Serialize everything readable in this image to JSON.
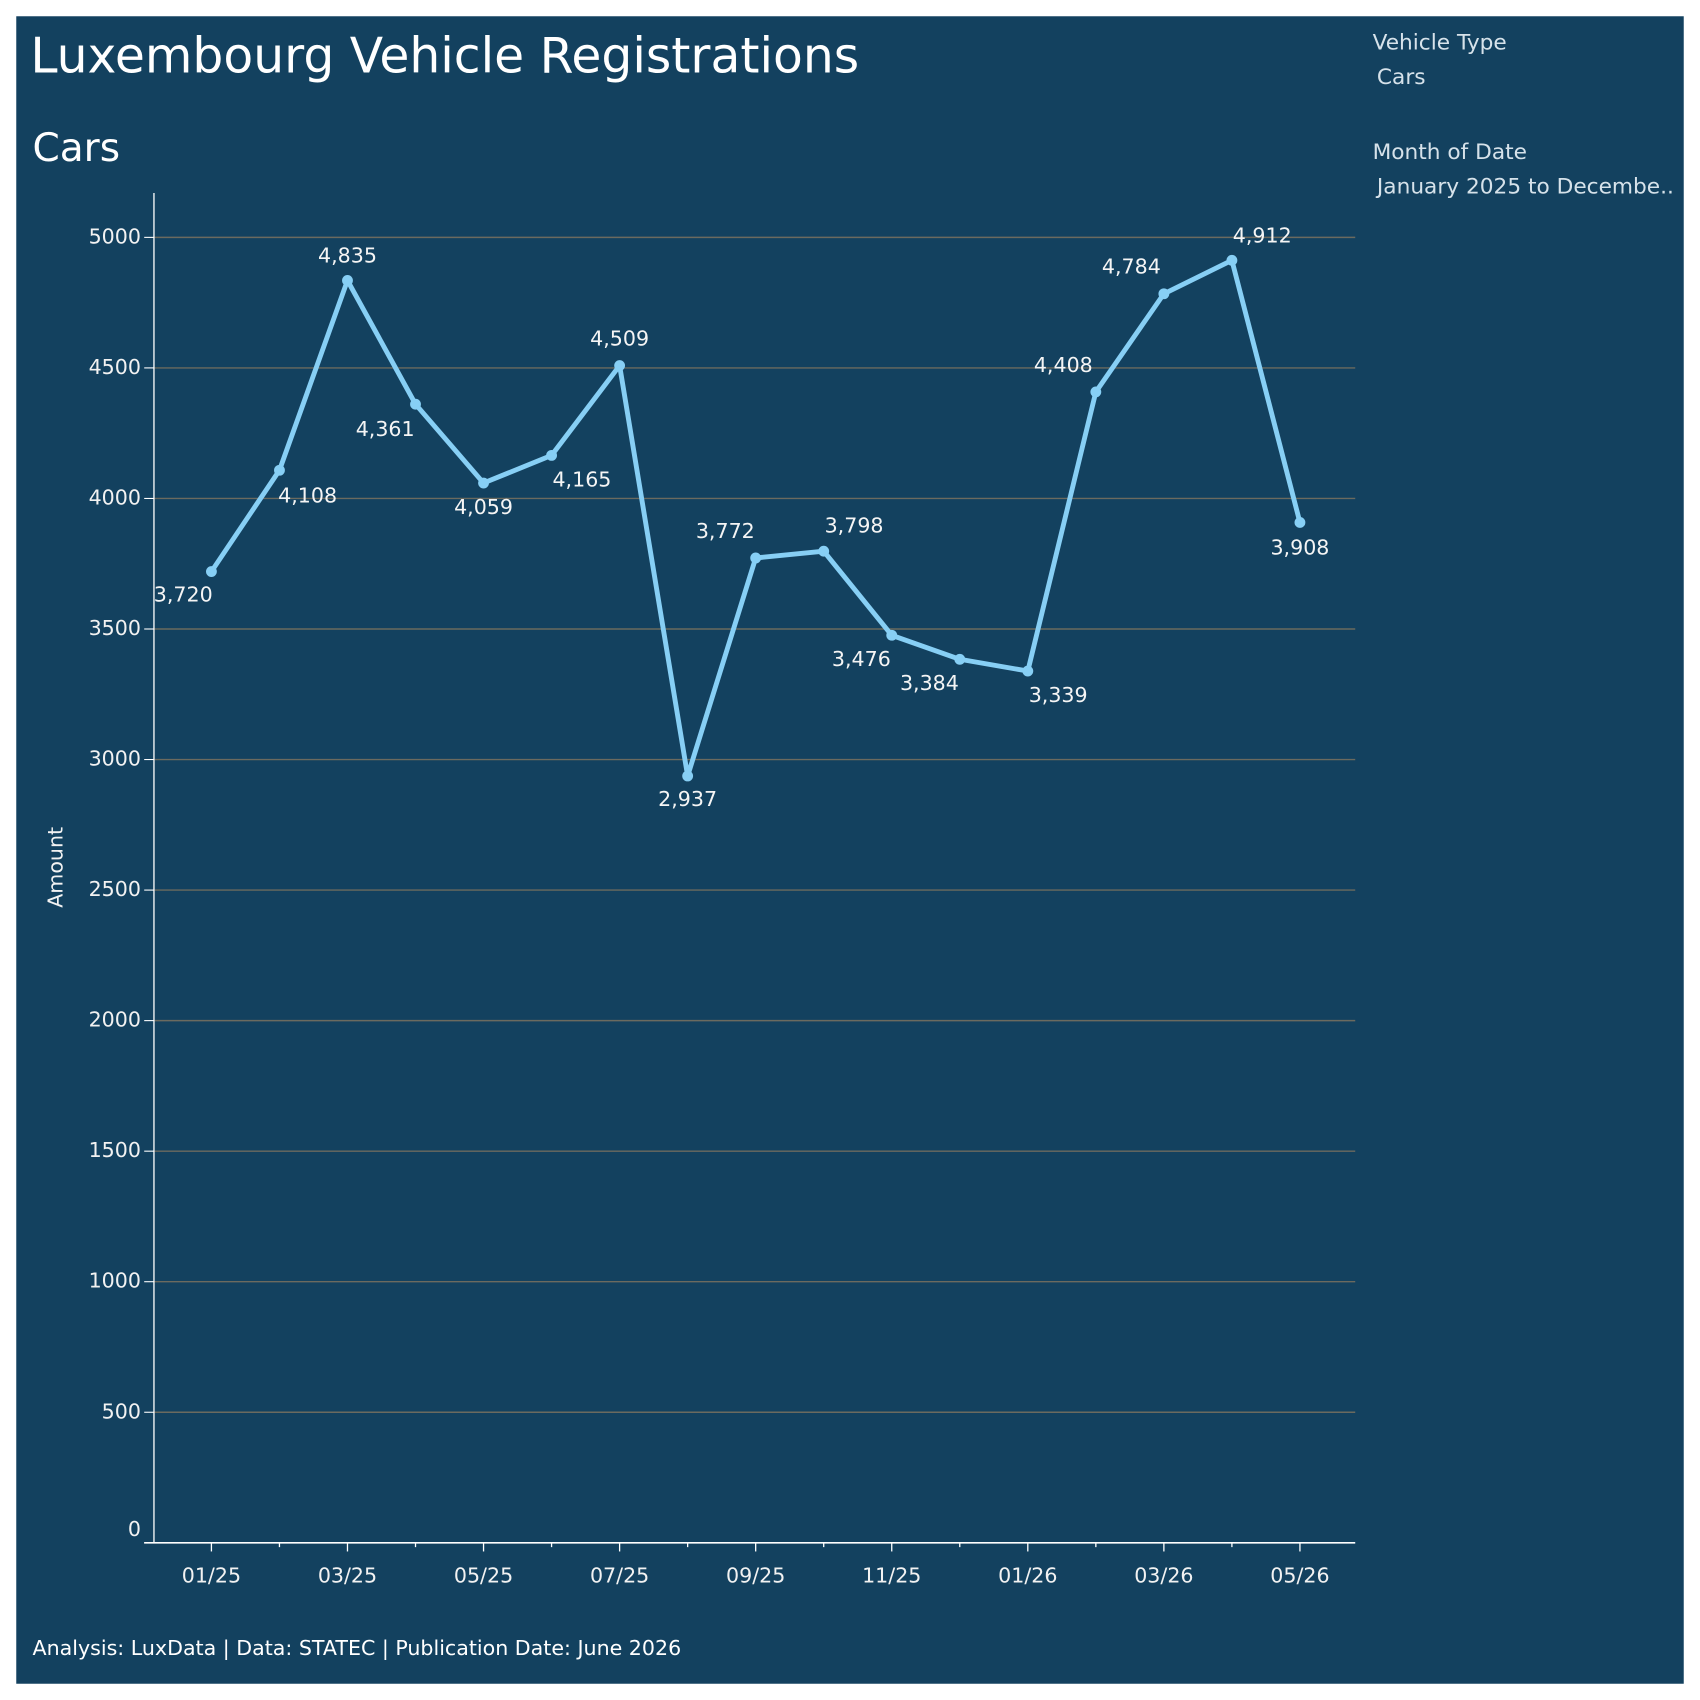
{
  "chart_data": {
    "type": "line",
    "title": "Luxembourg Vehicle Registrations",
    "subtitle": "Cars",
    "y_label": "Amount",
    "footer": "Analysis: LuxData | Data: STATEC | Publication Date: June 2026",
    "filters": [
      {
        "label": "Vehicle Type",
        "value": "Cars"
      },
      {
        "label": "Month of Date",
        "value": "January 2025 to Decembe.."
      }
    ],
    "categories": [
      "01/25",
      null,
      "03/25",
      null,
      "05/25",
      null,
      "07/25",
      null,
      "09/25",
      null,
      "11/25",
      null,
      "01/26",
      null,
      "03/26",
      null,
      "05/26"
    ],
    "values": [
      3720,
      4108,
      4835,
      4361,
      4059,
      4165,
      4509,
      2937,
      3772,
      3798,
      3476,
      3384,
      3339,
      4408,
      4784,
      4912,
      3908
    ],
    "value_labels": [
      "3,720",
      "4,108",
      "4,835",
      "4,361",
      "4,059",
      "4,165",
      "4,509",
      "2,937",
      "3,772",
      "3,798",
      "3,476",
      "3,384",
      "3,339",
      "4,408",
      "4,784",
      "4,912",
      "3,908"
    ],
    "color": "#87cff5",
    "ylim": [
      0,
      5170
    ],
    "yticks": [
      0,
      500,
      1000,
      1500,
      2000,
      2500,
      3000,
      3500,
      4000,
      4500,
      5000
    ],
    "grid": true
  }
}
